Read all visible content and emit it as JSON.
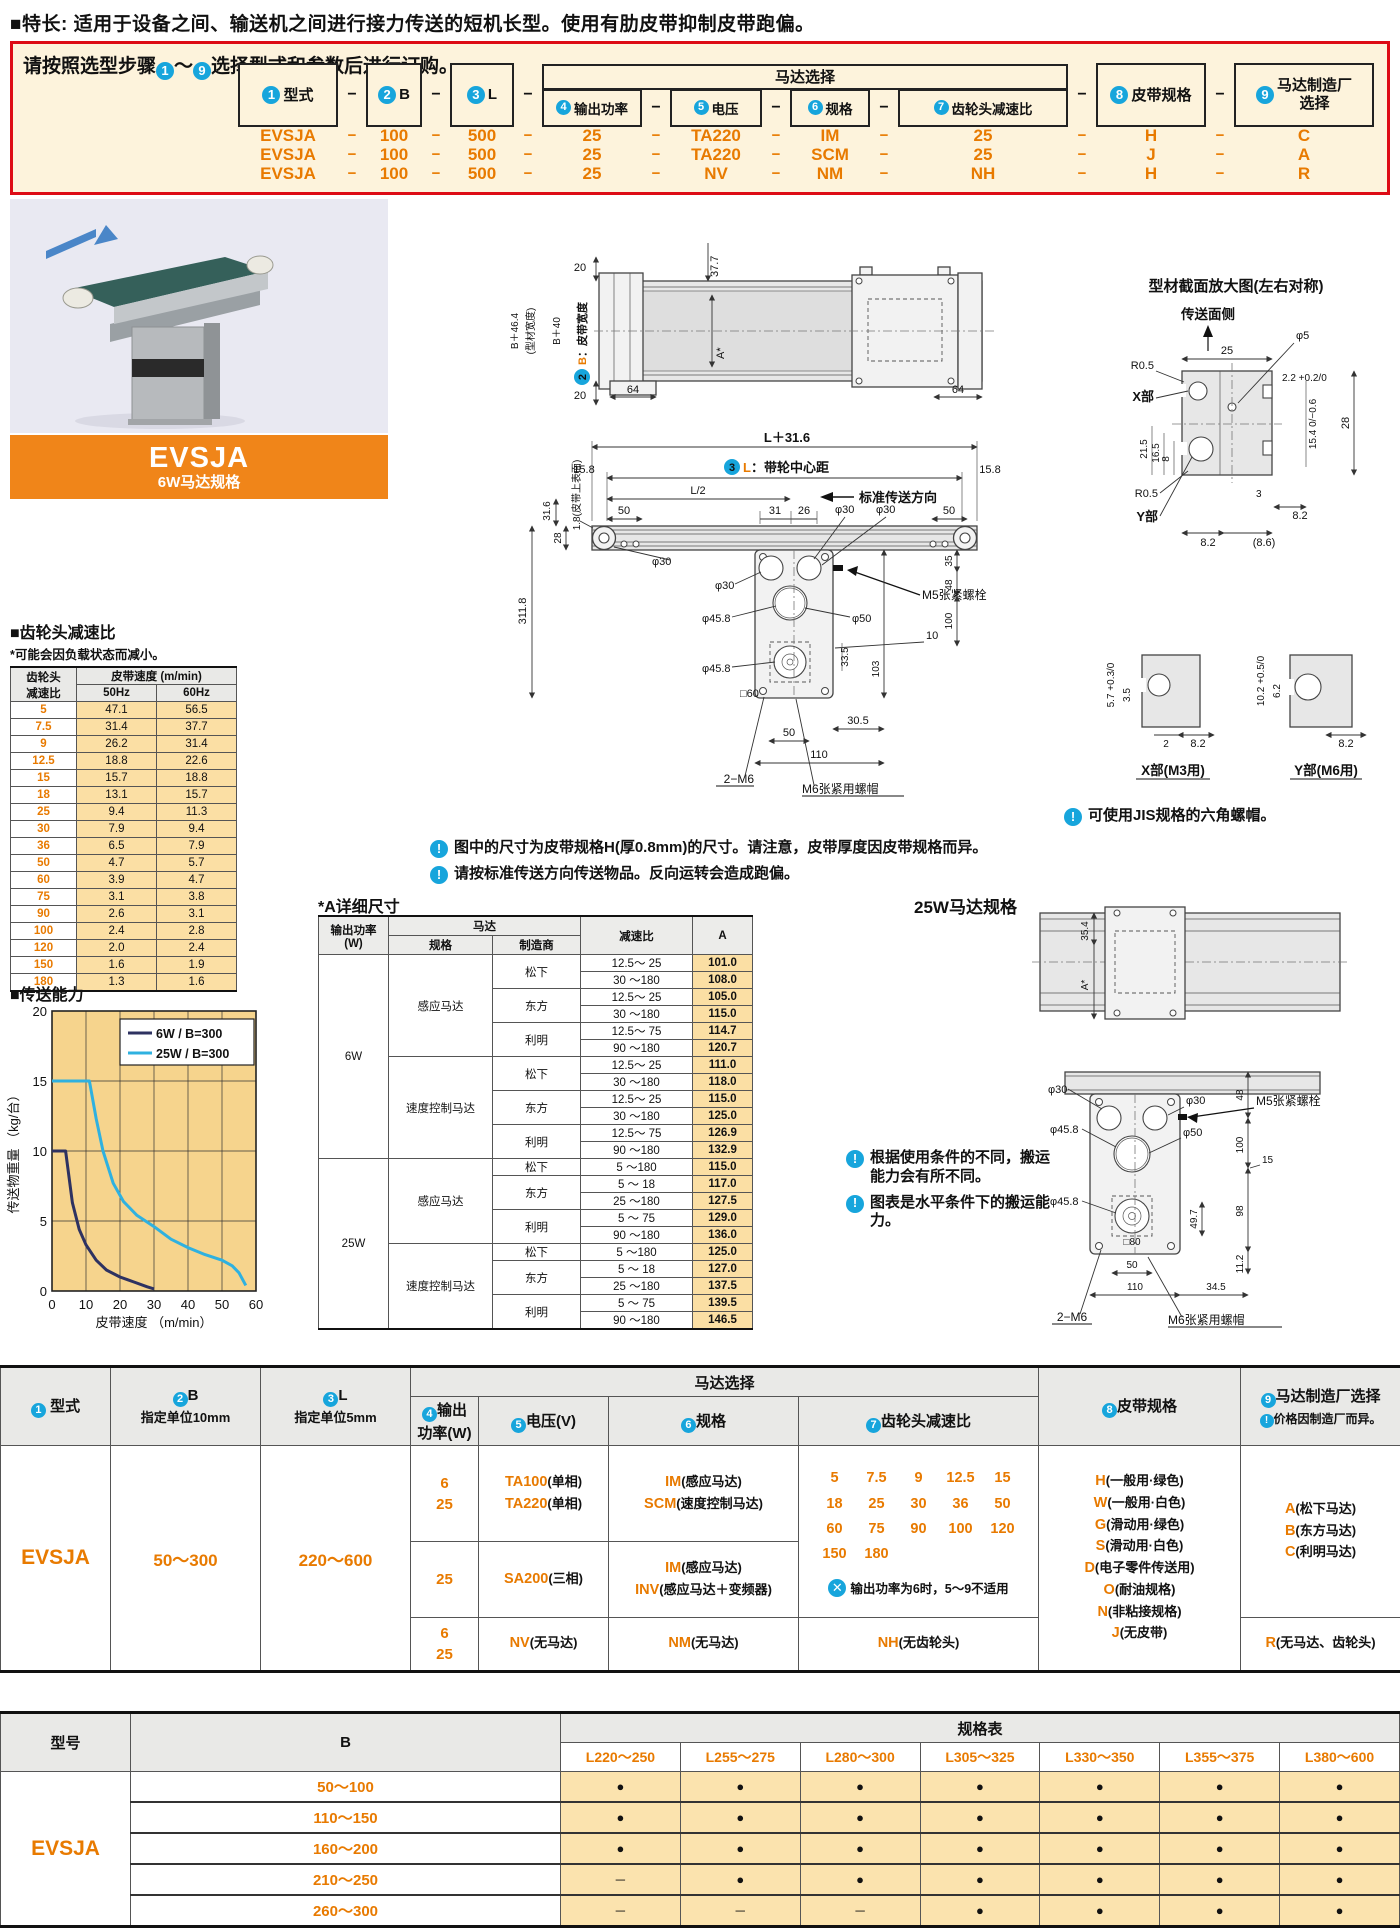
{
  "page": {
    "feature": "■特长: 适用于设备之间、输送机之间进行接力传送的短机长型。使用有肋皮带抑制皮带跑偏。"
  },
  "ordering": {
    "instr_pre": "请按照选型步骤",
    "instr_n1": "1",
    "instr_tilde": "～",
    "instr_n2": "9",
    "instr_post": "选择型式和参数后进行订购。",
    "dash": "−",
    "motor_group": "马达选择",
    "steps": [
      {
        "num": "1",
        "label": "型式"
      },
      {
        "num": "2",
        "label": "B"
      },
      {
        "num": "3",
        "label": "L"
      },
      {
        "num": "4",
        "label": "输出功率"
      },
      {
        "num": "5",
        "label": "电压"
      },
      {
        "num": "6",
        "label": "规格"
      },
      {
        "num": "7",
        "label": "齿轮头减速比"
      },
      {
        "num": "8",
        "label": "皮带规格"
      },
      {
        "num": "9",
        "label": "马达制造厂",
        "label2": "选择"
      }
    ],
    "examples": [
      [
        "EVSJA",
        "100",
        "500",
        "25",
        "TA220",
        "IM",
        "25",
        "H",
        "C"
      ],
      [
        "EVSJA",
        "100",
        "500",
        "25",
        "TA220",
        "SCM",
        "25",
        "J",
        "A"
      ],
      [
        "EVSJA",
        "100",
        "500",
        "25",
        "NV",
        "NM",
        "NH",
        "H",
        "R"
      ]
    ]
  },
  "banner": {
    "model": "EVSJA",
    "subtitle": "6W马达规格"
  },
  "gear_table": {
    "title": "■齿轮头减速比",
    "note": "*可能会因负载状态而减小。",
    "col1a": "齿轮头",
    "col1b": "减速比",
    "group": "皮带速度 (m/min)",
    "sub1": "50Hz",
    "sub2": "60Hz",
    "rows": [
      [
        "5",
        "47.1",
        "56.5"
      ],
      [
        "7.5",
        "31.4",
        "37.7"
      ],
      [
        "9",
        "26.2",
        "31.4"
      ],
      [
        "12.5",
        "18.8",
        "22.6"
      ],
      [
        "15",
        "15.7",
        "18.8"
      ],
      [
        "18",
        "13.1",
        "15.7"
      ],
      [
        "25",
        "9.4",
        "11.3"
      ],
      [
        "30",
        "7.9",
        "9.4"
      ],
      [
        "36",
        "6.5",
        "7.9"
      ],
      [
        "50",
        "4.7",
        "5.7"
      ],
      [
        "60",
        "3.9",
        "4.7"
      ],
      [
        "75",
        "3.1",
        "3.8"
      ],
      [
        "90",
        "2.6",
        "3.1"
      ],
      [
        "100",
        "2.4",
        "2.8"
      ],
      [
        "120",
        "2.0",
        "2.4"
      ],
      [
        "150",
        "1.6",
        "1.9"
      ],
      [
        "180",
        "1.3",
        "1.6"
      ]
    ]
  },
  "capacity_title": "■传送能力",
  "chart_data": {
    "type": "line",
    "title": "传送能力",
    "xlabel": "皮带速度 （m/min）",
    "ylabel": "传送物重量 （kg/台）",
    "xlim": [
      0,
      60
    ],
    "ylim": [
      0,
      20
    ],
    "xticks": [
      0,
      10,
      20,
      30,
      40,
      50,
      60
    ],
    "yticks": [
      0,
      5,
      10,
      15,
      20
    ],
    "grid": true,
    "legend_position": "top-right",
    "series": [
      {
        "name": "6W / B=300",
        "color": "#2e3261",
        "points": [
          [
            0,
            10
          ],
          [
            4,
            10
          ],
          [
            6,
            6.3
          ],
          [
            8,
            4.4
          ],
          [
            10,
            3.3
          ],
          [
            13,
            2.2
          ],
          [
            16,
            1.5
          ],
          [
            20,
            1.0
          ],
          [
            24,
            0.65
          ],
          [
            28,
            0.3
          ],
          [
            30,
            0.15
          ]
        ]
      },
      {
        "name": "25W / B=300",
        "color": "#2fb1e0",
        "points": [
          [
            0,
            15
          ],
          [
            11,
            15
          ],
          [
            13,
            12.3
          ],
          [
            15,
            10
          ],
          [
            18,
            7.7
          ],
          [
            21,
            6.4
          ],
          [
            25,
            5.4
          ],
          [
            30,
            4.6
          ],
          [
            35,
            3.7
          ],
          [
            40,
            3.1
          ],
          [
            45,
            2.6
          ],
          [
            50,
            2.2
          ],
          [
            53,
            1.8
          ],
          [
            55,
            1.3
          ],
          [
            57,
            0.4
          ]
        ]
      }
    ]
  },
  "drawings": {
    "plan": {
      "t20a": "20",
      "t20b": "20",
      "t377": "37.7",
      "b464": "B＋46.4",
      "b464b": "(型材宽度)",
      "b40": "B＋40",
      "bnum": "2",
      "bcode": "B",
      "blabel": "：皮带宽度",
      "t64a": "64",
      "t64b": "64",
      "ta": "A*"
    },
    "side": {
      "l316": "L＋31.6",
      "lnum": "3",
      "lcode": "L",
      "llabel": "：带轮中心距",
      "t158a": "15.8",
      "t158b": "15.8",
      "l2": "L/2",
      "dir": "标准传送方向",
      "t50a": "50",
      "t31": "31",
      "t26": "26",
      "t50b": "50",
      "p30a": "φ30",
      "p30b": "φ30",
      "p30c": "φ30",
      "p30d": "φ30",
      "t316": "31.6",
      "t18": "1.8(皮带上表面)",
      "t28": "28",
      "t3118": "311.8",
      "t35": "35",
      "t48": "48",
      "m5": "M5张紧螺栓",
      "p458a": "φ45.8",
      "p50": "φ50",
      "t100": "100",
      "t10": "10",
      "t335": "33.5",
      "t103": "103",
      "p458b": "φ45.8",
      "t60": "□60",
      "t305": "30.5",
      "t50c": "50",
      "t110": "110",
      "m6a": "2−M6",
      "m6b": "M6张紧用螺帽"
    },
    "section": {
      "title": "型材截面放大图(左右对称)",
      "face": "传送面侧",
      "p5": "φ5",
      "r05a": "R0.5",
      "t25": "25",
      "xpart": "X部",
      "t22": "2.2 +0.2/0",
      "t28": "28",
      "t215": "21.5",
      "t165": "16.5",
      "t8": "8",
      "t154": "15.4 0/−0.6",
      "r05b": "R0.5",
      "ypart": "Y部",
      "t3": "3",
      "t82a": "8.2",
      "t82b": "8.2",
      "t86": "(8.6)",
      "xd_title": "X部(M3用)",
      "xd57": "5.7 +0.3/0",
      "xd35": "3.5",
      "xd2": "2",
      "xd82": "8.2",
      "yd_title": "Y部(M6用)",
      "yd102": "10.2 +0.5/0",
      "yd62": "6.2",
      "yd82": "8.2"
    },
    "w25": {
      "title": "25W马达规格",
      "t354": "35.4",
      "ta": "A*",
      "p30a": "φ30",
      "p30b": "φ30",
      "t48": "48",
      "m5": "M5张紧螺栓",
      "p458a": "φ45.8",
      "p50": "φ50",
      "t100": "100",
      "t15": "15",
      "p458b": "φ45.8",
      "t80": "□80",
      "t497": "49.7",
      "t98": "98",
      "t112": "11.2",
      "t50": "50",
      "t110": "110",
      "t345": "34.5",
      "m6a": "2−M6",
      "m6b": "M6张紧用螺帽"
    }
  },
  "notes": {
    "n1": "图中的尺寸为皮带规格H(厚0.8mm)的尺寸。请注意，皮带厚度因皮带规格而异。",
    "n2": "请按标准传送方向传送物品。反向运转会造成跑偏。",
    "n3": "根据使用条件的不同，搬运能力会有所不同。",
    "n4": "图表是水平条件下的搬运能力。",
    "jis": "可使用JIS规格的六角螺帽。"
  },
  "a_table": {
    "title": "*A详细尺寸",
    "h_power": "输出功率",
    "h_power2": "(W)",
    "h_motor": "马达",
    "h_spec": "规格",
    "h_maker": "制造商",
    "h_ratio": "减速比",
    "h_a": "A",
    "groups": [
      {
        "power": "6W",
        "specs": [
          {
            "spec": "感应马达",
            "makers": [
              {
                "maker": "松下",
                "rows": [
                  [
                    "12.5～ 25",
                    "101.0"
                  ],
                  [
                    "30 ～180",
                    "108.0"
                  ]
                ]
              },
              {
                "maker": "东方",
                "rows": [
                  [
                    "12.5～ 25",
                    "105.0"
                  ],
                  [
                    "30 ～180",
                    "115.0"
                  ]
                ]
              },
              {
                "maker": "利明",
                "rows": [
                  [
                    "12.5～ 75",
                    "114.7"
                  ],
                  [
                    "90 ～180",
                    "120.7"
                  ]
                ]
              }
            ]
          },
          {
            "spec": "速度控制马达",
            "makers": [
              {
                "maker": "松下",
                "rows": [
                  [
                    "12.5～ 25",
                    "111.0"
                  ],
                  [
                    "30 ～180",
                    "118.0"
                  ]
                ]
              },
              {
                "maker": "东方",
                "rows": [
                  [
                    "12.5～ 25",
                    "115.0"
                  ],
                  [
                    "30 ～180",
                    "125.0"
                  ]
                ]
              },
              {
                "maker": "利明",
                "rows": [
                  [
                    "12.5～ 75",
                    "126.9"
                  ],
                  [
                    "90 ～180",
                    "132.9"
                  ]
                ]
              }
            ]
          }
        ]
      },
      {
        "power": "25W",
        "specs": [
          {
            "spec": "感应马达",
            "makers": [
              {
                "maker": "松下",
                "rows": [
                  [
                    "5 ～180",
                    "115.0"
                  ]
                ]
              },
              {
                "maker": "东方",
                "rows": [
                  [
                    "5 ～ 18",
                    "117.0"
                  ],
                  [
                    "25 ～180",
                    "127.5"
                  ]
                ]
              },
              {
                "maker": "利明",
                "rows": [
                  [
                    "5 ～ 75",
                    "129.0"
                  ],
                  [
                    "90 ～180",
                    "136.0"
                  ]
                ]
              }
            ]
          },
          {
            "spec": "速度控制马达",
            "makers": [
              {
                "maker": "松下",
                "rows": [
                  [
                    "5 ～180",
                    "125.0"
                  ]
                ]
              },
              {
                "maker": "东方",
                "rows": [
                  [
                    "5 ～ 18",
                    "127.0"
                  ],
                  [
                    "25 ～180",
                    "137.5"
                  ]
                ]
              },
              {
                "maker": "利明",
                "rows": [
                  [
                    "5 ～ 75",
                    "139.5"
                  ],
                  [
                    "90 ～180",
                    "146.5"
                  ]
                ]
              }
            ]
          }
        ]
      }
    ]
  },
  "selection": {
    "group_header": "马达选择",
    "h1num": "1",
    "h1": "型式",
    "h2num": "2",
    "h2": "B",
    "h2sub": "指定单位10mm",
    "h3num": "3",
    "h3": "L",
    "h3sub": "指定单位5mm",
    "h4num": "4",
    "h4a": "输出",
    "h4b": "功率(W)",
    "h5num": "5",
    "h5": "电压(V)",
    "h6num": "6",
    "h6": "规格",
    "h7num": "7",
    "h7": "齿轮头减速比",
    "h8num": "8",
    "h8": "皮带规格",
    "h9num": "9",
    "h9": "马达制造厂选择",
    "h9note": "价格因制造厂而异。",
    "model": "EVSJA",
    "b_range": "50～300",
    "l_range": "220～600",
    "rows": [
      {
        "power": [
          "6",
          "25"
        ],
        "voltage": [
          [
            "TA100",
            "(单相)"
          ],
          [
            "TA220",
            "(单相)"
          ]
        ],
        "spec": [
          [
            "IM",
            "(感应马达)"
          ],
          [
            "SCM",
            "(速度控制马达)"
          ]
        ]
      },
      {
        "power": [
          "25"
        ],
        "voltage": [
          [
            "SA200",
            "(三相)"
          ]
        ],
        "spec": [
          [
            "IM",
            "(感应马达)"
          ],
          [
            "INV",
            "(感应马达＋变频器)"
          ]
        ]
      },
      {
        "power": [
          "6",
          "25"
        ],
        "voltage": [
          [
            "NV",
            "(无马达)"
          ]
        ],
        "spec": [
          [
            "NM",
            "(无马达)"
          ]
        ]
      }
    ],
    "gear_numbers": [
      "5",
      "7.5",
      "9",
      "12.5",
      "15",
      "18",
      "25",
      "30",
      "36",
      "50",
      "60",
      "75",
      "90",
      "100",
      "120",
      "150",
      "180"
    ],
    "gear_note": "输出功率为6时，5～9不适用",
    "gear_none": [
      "NH",
      "(无齿轮头)"
    ],
    "belt": [
      [
        "H",
        "(一般用·绿色)"
      ],
      [
        "W",
        "(一般用·白色)"
      ],
      [
        "G",
        "(滑动用·绿色)"
      ],
      [
        "S",
        "(滑动用·白色)"
      ],
      [
        "D",
        "(电子零件传送用)"
      ],
      [
        "O",
        "(耐油规格)"
      ],
      [
        "N",
        "(非粘接规格)"
      ],
      [
        "J",
        "(无皮带)"
      ]
    ],
    "makers": [
      [
        "A",
        "(松下马达)"
      ],
      [
        "B",
        "(东方马达)"
      ],
      [
        "C",
        "(利明马达)"
      ]
    ],
    "maker_none": [
      "R",
      "(无马达、齿轮头)"
    ]
  },
  "spec_table": {
    "h_model": "型号",
    "h_b": "B",
    "h_group": "规格表",
    "l_cols": [
      "L220～250",
      "L255～275",
      "L280～300",
      "L305～325",
      "L330～350",
      "L355～375",
      "L380～600"
    ],
    "model": "EVSJA",
    "dot": "●",
    "nodot": "－",
    "rows": [
      {
        "b": "50～100",
        "cells": [
          1,
          1,
          1,
          1,
          1,
          1,
          1
        ]
      },
      {
        "b": "110～150",
        "cells": [
          1,
          1,
          1,
          1,
          1,
          1,
          1
        ]
      },
      {
        "b": "160～200",
        "cells": [
          1,
          1,
          1,
          1,
          1,
          1,
          1
        ]
      },
      {
        "b": "210～250",
        "cells": [
          0,
          1,
          1,
          1,
          1,
          1,
          1
        ]
      },
      {
        "b": "260～300",
        "cells": [
          0,
          0,
          0,
          1,
          1,
          1,
          1
        ]
      }
    ]
  }
}
